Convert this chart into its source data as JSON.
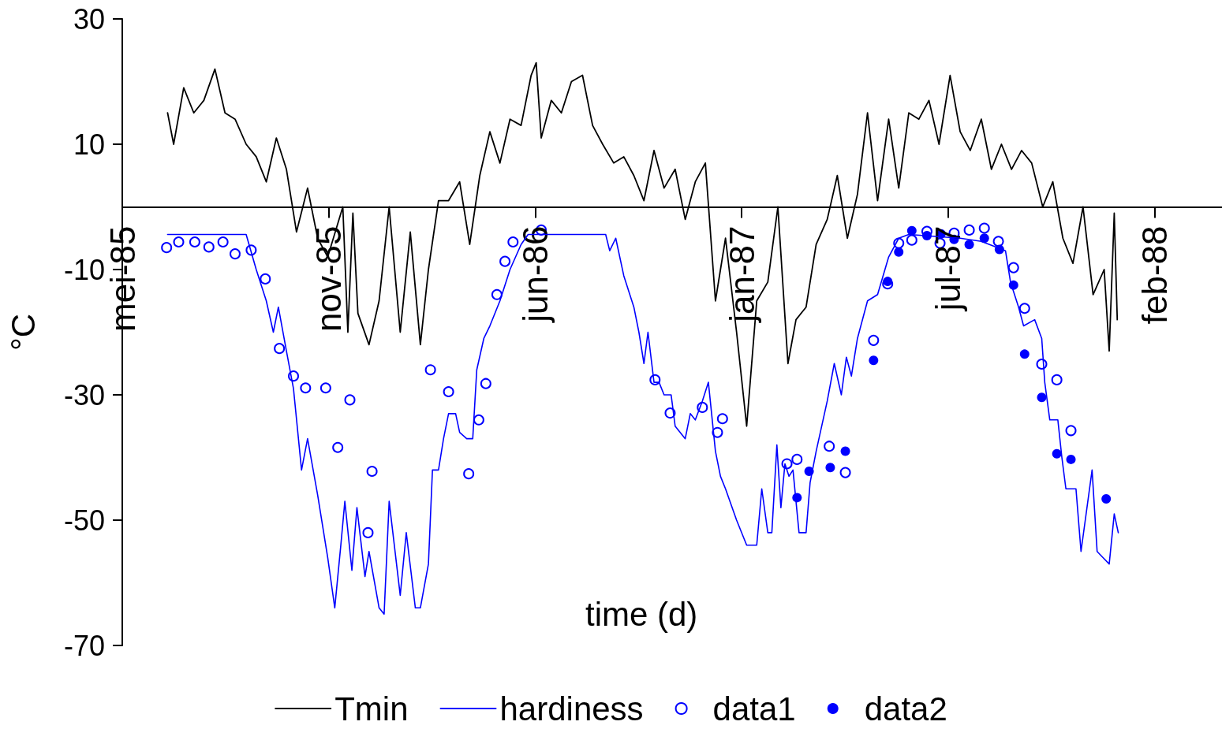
{
  "chart_data": {
    "type": "line",
    "xlabel": "time (d)",
    "ylabel": "°C",
    "xlim": [
      "1985-05-01",
      "1988-04-27"
    ],
    "xticks": [
      {
        "value": "1985-05-01",
        "label": "mei-85"
      },
      {
        "value": "1985-11-22",
        "label": "nov-85"
      },
      {
        "value": "1986-06-15",
        "label": "jun-86"
      },
      {
        "value": "1987-01-06",
        "label": "jan-87"
      },
      {
        "value": "1987-07-30",
        "label": "jul-87"
      },
      {
        "value": "1988-02-20",
        "label": "feb-88"
      }
    ],
    "ylim": [
      -70,
      30
    ],
    "yticks": [
      -70,
      -50,
      -30,
      -10,
      10,
      30
    ],
    "grid": false,
    "legend": "bottom",
    "series": [
      {
        "name": "Tmin",
        "type": "line",
        "color": "#000000",
        "marker": "none",
        "line_style": "solid",
        "x": [
          "1985-06-15",
          "1985-06-21",
          "1985-07-01",
          "1985-07-11",
          "1985-07-21",
          "1985-08-01",
          "1985-08-11",
          "1985-08-21",
          "1985-09-01",
          "1985-09-11",
          "1985-09-21",
          "1985-10-01",
          "1985-10-11",
          "1985-10-21",
          "1985-11-01",
          "1985-11-11",
          "1985-11-21",
          "1985-12-06",
          "1985-12-11",
          "1985-12-16",
          "1985-12-21",
          "1986-01-01",
          "1986-01-11",
          "1986-01-21",
          "1986-02-01",
          "1986-02-11",
          "1986-02-21",
          "1986-03-01",
          "1986-03-11",
          "1986-03-21",
          "1986-04-01",
          "1986-04-11",
          "1986-04-21",
          "1986-05-01",
          "1986-05-11",
          "1986-05-21",
          "1986-06-01",
          "1986-06-11",
          "1986-06-16",
          "1986-06-21",
          "1986-07-01",
          "1986-07-11",
          "1986-07-21",
          "1986-08-01",
          "1986-08-11",
          "1986-08-21",
          "1986-09-01",
          "1986-09-11",
          "1986-09-21",
          "1986-10-01",
          "1986-10-11",
          "1986-10-21",
          "1986-11-01",
          "1986-11-11",
          "1986-11-21",
          "1986-12-01",
          "1986-12-11",
          "1986-12-21",
          "1987-01-01",
          "1987-01-11",
          "1987-01-21",
          "1987-02-01",
          "1987-02-11",
          "1987-02-21",
          "1987-03-01",
          "1987-03-11",
          "1987-03-21",
          "1987-04-01",
          "1987-04-11",
          "1987-04-21",
          "1987-05-01",
          "1987-05-11",
          "1987-05-21",
          "1987-06-01",
          "1987-06-11",
          "1987-06-21",
          "1987-07-01",
          "1987-07-11",
          "1987-07-21",
          "1987-08-01",
          "1987-08-11",
          "1987-08-21",
          "1987-09-01",
          "1987-09-11",
          "1987-09-21",
          "1987-10-01",
          "1987-10-11",
          "1987-10-21",
          "1987-11-01",
          "1987-11-11",
          "1987-11-21",
          "1987-12-01",
          "1987-12-11",
          "1987-12-21",
          "1988-01-01",
          "1988-01-06",
          "1988-01-11",
          "1988-01-14"
        ],
        "values": [
          15,
          10,
          19,
          15,
          17,
          22,
          15,
          14,
          10,
          8,
          4,
          11,
          6,
          -4,
          3,
          -5,
          -8,
          0,
          -20,
          -1,
          -17,
          -22,
          -15,
          0,
          -20,
          -4,
          -22,
          -10,
          1,
          1,
          4,
          -6,
          5,
          12,
          7,
          14,
          13,
          21,
          23,
          11,
          17,
          15,
          20,
          21,
          13,
          10,
          7,
          8,
          5,
          1,
          9,
          3,
          6,
          -2,
          4,
          7,
          -15,
          -5,
          -20,
          -35,
          -15,
          -12,
          0,
          -25,
          -18,
          -16,
          -6,
          -2,
          5,
          -5,
          2,
          15,
          1,
          14,
          3,
          15,
          14,
          17,
          10,
          21,
          12,
          9,
          14,
          6,
          10,
          6,
          9,
          7,
          0,
          4,
          -5,
          -9,
          0,
          -14,
          -10,
          -23,
          -1,
          -18
        ]
      },
      {
        "name": "hardiness",
        "type": "line",
        "color": "#0000ff",
        "marker": "none",
        "line_style": "solid",
        "x": [
          "1985-06-15",
          "1985-09-01",
          "1985-09-11",
          "1985-09-21",
          "1985-09-28",
          "1985-10-03",
          "1985-10-11",
          "1985-10-18",
          "1985-10-26",
          "1985-11-01",
          "1985-11-11",
          "1985-11-21",
          "1985-11-28",
          "1985-12-04",
          "1985-12-08",
          "1985-12-15",
          "1985-12-20",
          "1985-12-28",
          "1986-01-01",
          "1986-01-11",
          "1986-01-16",
          "1986-01-21",
          "1986-02-01",
          "1986-02-07",
          "1986-02-16",
          "1986-02-21",
          "1986-03-01",
          "1986-03-05",
          "1986-03-11",
          "1986-03-16",
          "1986-03-21",
          "1986-03-28",
          "1986-04-01",
          "1986-04-08",
          "1986-04-14",
          "1986-04-18",
          "1986-04-25",
          "1986-05-01",
          "1986-05-11",
          "1986-05-21",
          "1986-06-01",
          "1986-06-08",
          "1986-08-24",
          "1986-08-28",
          "1986-09-03",
          "1986-09-11",
          "1986-09-21",
          "1986-09-26",
          "1986-10-01",
          "1986-10-05",
          "1986-10-11",
          "1986-10-16",
          "1986-10-21",
          "1986-10-28",
          "1986-11-01",
          "1986-11-11",
          "1986-11-16",
          "1986-11-21",
          "1986-11-28",
          "1986-12-04",
          "1986-12-11",
          "1986-12-16",
          "1986-12-21",
          "1987-01-01",
          "1987-01-11",
          "1987-01-21",
          "1987-01-26",
          "1987-02-01",
          "1987-02-05",
          "1987-02-10",
          "1987-02-14",
          "1987-02-18",
          "1987-02-22",
          "1987-02-26",
          "1987-03-04",
          "1987-03-11",
          "1987-03-15",
          "1987-03-21",
          "1987-04-01",
          "1987-04-08",
          "1987-04-15",
          "1987-04-20",
          "1987-04-25",
          "1987-05-01",
          "1987-05-11",
          "1987-05-21",
          "1987-06-01",
          "1987-06-11",
          "1987-06-21",
          "1987-08-11",
          "1987-09-01",
          "1987-09-25",
          "1987-09-30",
          "1987-10-08",
          "1987-10-13",
          "1987-10-24",
          "1987-10-31",
          "1987-11-03",
          "1987-11-08",
          "1987-11-16",
          "1987-11-20",
          "1987-11-24",
          "1987-12-04",
          "1987-12-09",
          "1987-12-20",
          "1987-12-25",
          "1987-12-31",
          "1988-01-06",
          "1988-01-11",
          "1988-01-15"
        ],
        "values": [
          -4.4,
          -4.4,
          -10,
          -15,
          -20,
          -16,
          -23,
          -29,
          -42,
          -37,
          -46,
          -56,
          -64,
          -54,
          -47,
          -58,
          -48,
          -59,
          -55,
          -64,
          -65,
          -47,
          -62,
          -52,
          -64,
          -64,
          -57,
          -42,
          -42,
          -37,
          -33,
          -33,
          -36,
          -37,
          -37,
          -26,
          -21,
          -19,
          -15,
          -10,
          -6,
          -4.4,
          -4.4,
          -7,
          -5,
          -11,
          -16,
          -20,
          -25,
          -20,
          -28,
          -28,
          -30,
          -30,
          -35,
          -37,
          -33,
          -34,
          -31,
          -28,
          -39,
          -43,
          -45,
          -50,
          -54,
          -54,
          -45,
          -52,
          -52,
          -38,
          -48,
          -41,
          -43,
          -42,
          -52,
          -52,
          -44,
          -39,
          -31,
          -25,
          -30,
          -24,
          -27,
          -21,
          -15,
          -14,
          -8,
          -5,
          -4.4,
          -5,
          -5.5,
          -7,
          -12,
          -16,
          -19,
          -18,
          -21,
          -28,
          -34,
          -34,
          -40,
          -45,
          -45,
          -55,
          -42,
          -55,
          -56,
          -57,
          -49,
          -52
        ]
      },
      {
        "name": "data1",
        "type": "scatter",
        "color": "#0000ff",
        "marker": "circle",
        "x": [
          "1985-06-14",
          "1985-06-26",
          "1985-07-12",
          "1985-07-26",
          "1985-08-09",
          "1985-08-21",
          "1985-09-06",
          "1985-09-20",
          "1985-10-04",
          "1985-10-18",
          "1985-10-30",
          "1985-11-19",
          "1985-12-01",
          "1985-12-13",
          "1985-12-31",
          "1986-01-04",
          "1986-03-03",
          "1986-03-21",
          "1986-04-10",
          "1986-04-20",
          "1986-04-27",
          "1986-05-08",
          "1986-05-16",
          "1986-05-24",
          "1986-06-21",
          "1986-10-12",
          "1986-10-27",
          "1986-11-28",
          "1986-12-13",
          "1986-12-18",
          "1987-02-20",
          "1987-03-02",
          "1987-04-03",
          "1987-04-19",
          "1987-05-17",
          "1987-05-31",
          "1987-06-11",
          "1987-06-24",
          "1987-07-09",
          "1987-07-22",
          "1987-08-05",
          "1987-08-20",
          "1987-09-04",
          "1987-09-18",
          "1987-10-03",
          "1987-10-14",
          "1987-10-31",
          "1987-11-15",
          "1987-11-29"
        ],
        "values": [
          -6.5,
          -5.6,
          -5.6,
          -6.4,
          -5.6,
          -7.5,
          -6.9,
          -11.5,
          -22.6,
          -27,
          -28.9,
          -28.9,
          -38.4,
          -30.8,
          -52,
          -42.2,
          -26,
          -29.5,
          -42.6,
          -34,
          -28.2,
          -14,
          -8.7,
          -5.6,
          -3.7,
          -27.6,
          -32.9,
          -32,
          -36,
          -33.8,
          -41,
          -40.3,
          -38.2,
          -42.4,
          -21.3,
          -12.3,
          -5.8,
          -5.3,
          -3.9,
          -5.8,
          -4.2,
          -3.7,
          -3.4,
          -5.5,
          -9.7,
          -16.2,
          -25.1,
          -27.6,
          -35.7
        ]
      },
      {
        "name": "data2",
        "type": "scatter",
        "color": "#0000ff",
        "marker": "circle",
        "x": [
          "1987-03-02",
          "1987-03-14",
          "1987-04-04",
          "1987-04-19",
          "1987-05-17",
          "1987-05-31",
          "1987-06-11",
          "1987-06-24",
          "1987-07-09",
          "1987-07-23",
          "1987-08-05",
          "1987-08-20",
          "1987-09-04",
          "1987-09-19",
          "1987-10-03",
          "1987-10-14",
          "1987-10-31",
          "1987-11-15",
          "1987-11-29",
          "1988-01-03"
        ],
        "values": [
          -46.4,
          -42.2,
          -41.6,
          -39,
          -24.5,
          -11.9,
          -7.2,
          -3.8,
          -4.6,
          -4.3,
          -5.2,
          -6,
          -5,
          -6.8,
          -12.5,
          -23.5,
          -30.4,
          -39.4,
          -40.3,
          -46.6
        ]
      }
    ]
  }
}
